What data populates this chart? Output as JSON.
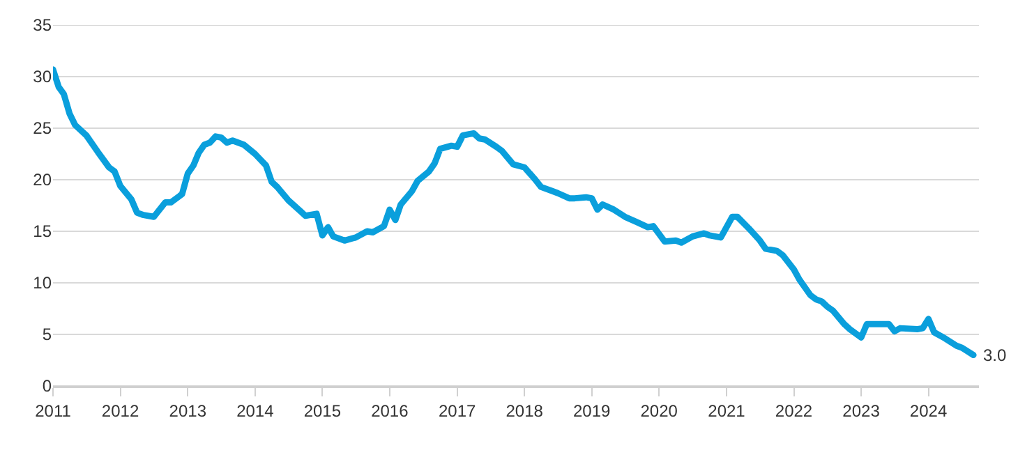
{
  "chart_data": {
    "type": "line",
    "x": [
      "2011-01",
      "2011-02",
      "2011-03",
      "2011-04",
      "2011-05",
      "2011-07",
      "2011-09",
      "2011-11",
      "2011-12",
      "2012-01",
      "2012-03",
      "2012-04",
      "2012-05",
      "2012-07",
      "2012-09",
      "2012-10",
      "2012-12",
      "2013-01",
      "2013-02",
      "2013-03",
      "2013-04",
      "2013-05",
      "2013-06",
      "2013-07",
      "2013-08",
      "2013-09",
      "2013-11",
      "2014-01",
      "2014-03",
      "2014-04",
      "2014-05",
      "2014-07",
      "2014-09",
      "2014-10",
      "2014-12",
      "2015-01",
      "2015-02",
      "2015-03",
      "2015-05",
      "2015-07",
      "2015-09",
      "2015-10",
      "2015-12",
      "2016-01",
      "2016-02",
      "2016-03",
      "2016-05",
      "2016-06",
      "2016-08",
      "2016-09",
      "2016-10",
      "2016-12",
      "2017-01",
      "2017-02",
      "2017-03",
      "2017-04",
      "2017-05",
      "2017-06",
      "2017-08",
      "2017-09",
      "2017-11",
      "2018-01",
      "2018-03",
      "2018-04",
      "2018-06",
      "2018-07",
      "2018-09",
      "2018-10",
      "2018-12",
      "2019-01",
      "2019-02",
      "2019-03",
      "2019-05",
      "2019-07",
      "2019-09",
      "2019-11",
      "2019-12",
      "2020-02",
      "2020-04",
      "2020-05",
      "2020-07",
      "2020-09",
      "2020-10",
      "2020-12",
      "2021-02",
      "2021-03",
      "2021-05",
      "2021-07",
      "2021-08",
      "2021-10",
      "2021-11",
      "2022-01",
      "2022-02",
      "2022-04",
      "2022-05",
      "2022-06",
      "2022-07",
      "2022-08",
      "2022-10",
      "2022-11",
      "2023-01",
      "2023-02",
      "2023-04",
      "2023-06",
      "2023-07",
      "2023-08",
      "2023-11",
      "2023-12",
      "2024-01",
      "2024-02",
      "2024-04",
      "2024-06",
      "2024-07",
      "2024-09"
    ],
    "series": [
      {
        "color": "#0a9fdc",
        "values": [
          30.7,
          29.0,
          28.3,
          26.4,
          25.3,
          24.3,
          22.7,
          21.2,
          20.8,
          19.4,
          18.1,
          16.8,
          16.6,
          16.4,
          17.8,
          17.8,
          18.6,
          20.6,
          21.4,
          22.6,
          23.4,
          23.6,
          24.2,
          24.1,
          23.6,
          23.8,
          23.4,
          22.5,
          21.4,
          19.8,
          19.3,
          18.0,
          17.0,
          16.5,
          16.7,
          14.6,
          15.4,
          14.5,
          14.1,
          14.4,
          15.0,
          14.9,
          15.5,
          17.1,
          16.1,
          17.6,
          18.9,
          19.9,
          20.8,
          21.6,
          23.0,
          23.3,
          23.2,
          24.3,
          24.4,
          24.5,
          24.0,
          23.9,
          23.2,
          22.8,
          21.5,
          21.2,
          20.0,
          19.3,
          18.9,
          18.7,
          18.2,
          18.2,
          18.3,
          18.2,
          17.1,
          17.6,
          17.1,
          16.4,
          15.9,
          15.4,
          15.5,
          14.0,
          14.1,
          13.9,
          14.5,
          14.8,
          14.6,
          14.4,
          16.4,
          16.4,
          15.3,
          14.1,
          13.3,
          13.1,
          12.7,
          11.3,
          10.3,
          8.8,
          8.4,
          8.2,
          7.7,
          7.3,
          6.0,
          5.5,
          4.7,
          6.0,
          6.0,
          6.0,
          5.3,
          5.6,
          5.5,
          5.6,
          6.5,
          5.2,
          4.6,
          3.9,
          3.7,
          3.0
        ]
      }
    ],
    "annotations": [
      {
        "text": "3.0",
        "x": "2024-09",
        "y": 3.0
      }
    ],
    "xlim": [
      "2011-01",
      "2024-10"
    ],
    "xticks": [
      {
        "value": "2011",
        "label": "2011"
      },
      {
        "value": "2012",
        "label": "2012"
      },
      {
        "value": "2013",
        "label": "2013"
      },
      {
        "value": "2014",
        "label": "2014"
      },
      {
        "value": "2015",
        "label": "2015"
      },
      {
        "value": "2016",
        "label": "2016"
      },
      {
        "value": "2017",
        "label": "2017"
      },
      {
        "value": "2018",
        "label": "2018"
      },
      {
        "value": "2019",
        "label": "2019"
      },
      {
        "value": "2020",
        "label": "2020"
      },
      {
        "value": "2021",
        "label": "2021"
      },
      {
        "value": "2022",
        "label": "2022"
      },
      {
        "value": "2023",
        "label": "2023"
      },
      {
        "value": "2024",
        "label": "2024"
      }
    ],
    "ylim": [
      0,
      35
    ],
    "yticks": [
      0,
      5,
      10,
      15,
      20,
      25,
      30,
      35
    ],
    "grid": "y",
    "marker": "none",
    "line_style": "solid"
  }
}
